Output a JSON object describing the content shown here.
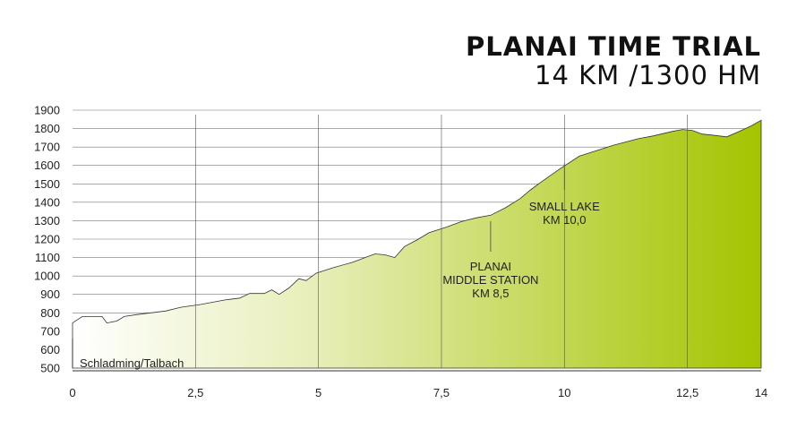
{
  "title": "PLANAI TIME TRIAL",
  "subtitle": "14 KM /1300 HM",
  "chart_data": {
    "type": "area",
    "title": "PLANAI TIME TRIAL",
    "subtitle": "14 KM /1300 HM",
    "xlabel": "",
    "ylabel": "",
    "xlim": [
      0,
      14
    ],
    "ylim": [
      500,
      1900
    ],
    "x_ticks": [
      "0",
      "2,5",
      "5",
      "7,5",
      "10",
      "12,5",
      "14"
    ],
    "x_tick_values": [
      0,
      2.5,
      5,
      7.5,
      10,
      12.5,
      14
    ],
    "y_ticks": [
      "500",
      "600",
      "700",
      "800",
      "900",
      "1000",
      "1100",
      "1200",
      "1300",
      "1400",
      "1500",
      "1600",
      "1700",
      "1800",
      "1900"
    ],
    "y_tick_values": [
      500,
      600,
      700,
      800,
      900,
      1000,
      1100,
      1200,
      1300,
      1400,
      1500,
      1600,
      1700,
      1800,
      1900
    ],
    "x": [
      0,
      0.2,
      0.6,
      0.7,
      0.9,
      1.05,
      1.3,
      1.9,
      2.2,
      2.6,
      3.1,
      3.4,
      3.6,
      3.9,
      4.05,
      4.2,
      4.4,
      4.6,
      4.75,
      4.95,
      5.3,
      5.7,
      6.0,
      6.15,
      6.35,
      6.55,
      6.75,
      7.0,
      7.25,
      7.6,
      7.9,
      8.2,
      8.5,
      8.8,
      9.1,
      9.3,
      9.5,
      9.9,
      10.3,
      11.0,
      11.5,
      11.8,
      12.2,
      12.4,
      12.6,
      12.8,
      13.0,
      13.3,
      13.6,
      13.8,
      14.0
    ],
    "y": [
      745,
      780,
      780,
      745,
      755,
      780,
      790,
      810,
      830,
      845,
      870,
      880,
      905,
      905,
      925,
      900,
      935,
      985,
      975,
      1015,
      1045,
      1075,
      1105,
      1120,
      1115,
      1100,
      1160,
      1195,
      1235,
      1265,
      1295,
      1315,
      1330,
      1370,
      1420,
      1465,
      1505,
      1580,
      1650,
      1710,
      1745,
      1760,
      1785,
      1795,
      1790,
      1770,
      1765,
      1755,
      1790,
      1815,
      1845
    ],
    "annotations": [
      {
        "lines": [
          "PLANAI",
          "MIDDLE STATION",
          "KM 8,5"
        ],
        "x": 8.5
      },
      {
        "lines": [
          "SMALL LAKE",
          "KM 10,0"
        ],
        "x": 10.0
      },
      {
        "lines": [
          "Schladming/Talbach"
        ],
        "x": 0
      }
    ],
    "grid": true,
    "fill_gradient": [
      "#ffffff",
      "#a4c400"
    ]
  }
}
